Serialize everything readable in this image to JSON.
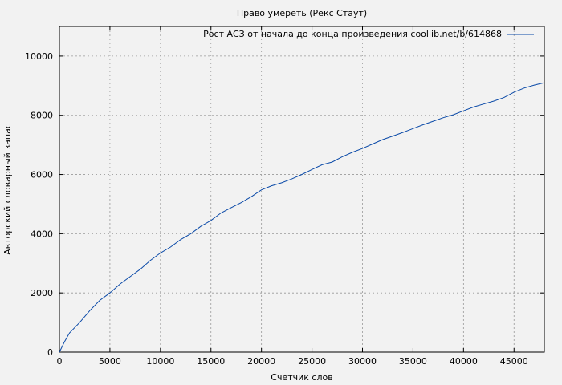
{
  "chart_data": {
    "type": "line",
    "title": "Право умереть (Рекс Стаут)",
    "xlabel": "Счетчик слов",
    "ylabel": "Авторский словарный запас",
    "xlim": [
      0,
      48000
    ],
    "ylim": [
      0,
      11000
    ],
    "xticks": [
      0,
      5000,
      10000,
      15000,
      20000,
      25000,
      30000,
      35000,
      40000,
      45000
    ],
    "yticks": [
      0,
      2000,
      4000,
      6000,
      8000,
      10000
    ],
    "grid": true,
    "legend_position": "top-right",
    "series": [
      {
        "name": "Рост АСЗ от начала до конца произведения coollib.net/b/614868",
        "color": "#0b4aa8",
        "x": [
          0,
          500,
          1000,
          2000,
          3000,
          4000,
          5000,
          6000,
          7000,
          8000,
          9000,
          10000,
          11000,
          12000,
          13000,
          14000,
          15000,
          16000,
          17000,
          18000,
          19000,
          20000,
          21000,
          22000,
          23000,
          24000,
          25000,
          26000,
          27000,
          28000,
          29000,
          30000,
          31000,
          32000,
          33000,
          34000,
          35000,
          36000,
          37000,
          38000,
          39000,
          40000,
          41000,
          42000,
          43000,
          44000,
          45000,
          46000,
          47000,
          48000
        ],
        "y": [
          0,
          350,
          650,
          1000,
          1400,
          1750,
          2000,
          2300,
          2550,
          2800,
          3100,
          3350,
          3550,
          3800,
          4000,
          4250,
          4450,
          4700,
          4880,
          5050,
          5250,
          5480,
          5620,
          5720,
          5850,
          6000,
          6170,
          6330,
          6420,
          6600,
          6750,
          6880,
          7030,
          7180,
          7300,
          7420,
          7550,
          7680,
          7800,
          7920,
          8020,
          8150,
          8280,
          8380,
          8480,
          8600,
          8780,
          8920,
          9020,
          9100
        ]
      }
    ]
  }
}
